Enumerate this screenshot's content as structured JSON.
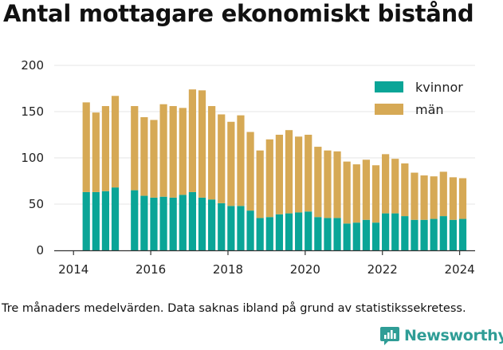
{
  "title": "Antal mottagare ekonomiskt bistånd",
  "caption": "Tre månaders medelvärden. Data saknas ibland på grund av statistikssekretess.",
  "brand": {
    "name": "Newsworthy",
    "icon": "newsworthy-logo-icon",
    "color": "#2f9d96"
  },
  "colors": {
    "kvinnor": "#0aa597",
    "man": "#d6a955",
    "axis": "#333333",
    "grid": "#e6e6e6"
  },
  "chart_data": {
    "type": "bar",
    "stacked": true,
    "title": "Antal mottagare ekonomiskt bistånd",
    "xlabel": "",
    "ylabel": "",
    "ylim": [
      0,
      200
    ],
    "yticks": [
      0,
      50,
      100,
      150,
      200
    ],
    "xlim": [
      2013.5,
      2024.4
    ],
    "xticks": [
      2014,
      2016,
      2018,
      2020,
      2022,
      2024
    ],
    "xtick_labels": [
      "2014",
      "2016",
      "2018",
      "2020",
      "2022",
      "2024"
    ],
    "grid": "horizontal",
    "legend": "top-right",
    "x": [
      2014.33,
      2014.58,
      2014.83,
      2015.08,
      2015.58,
      2015.83,
      2016.08,
      2016.33,
      2016.58,
      2016.83,
      2017.08,
      2017.33,
      2017.58,
      2017.83,
      2018.08,
      2018.33,
      2018.58,
      2018.83,
      2019.08,
      2019.33,
      2019.58,
      2019.83,
      2020.08,
      2020.33,
      2020.58,
      2020.83,
      2021.08,
      2021.33,
      2021.58,
      2021.83,
      2022.08,
      2022.33,
      2022.58,
      2022.83,
      2023.08,
      2023.33,
      2023.58,
      2023.83,
      2024.08
    ],
    "series": [
      {
        "name": "kvinnor",
        "color": "#0aa597",
        "values": [
          63,
          63,
          64,
          68,
          65,
          59,
          57,
          58,
          57,
          60,
          63,
          57,
          55,
          51,
          48,
          48,
          43,
          35,
          36,
          39,
          40,
          41,
          42,
          36,
          35,
          35,
          29,
          30,
          33,
          30,
          40,
          40,
          37,
          33,
          33,
          34,
          37,
          33,
          34
        ]
      },
      {
        "name": "män",
        "color": "#d6a955",
        "values": [
          97,
          86,
          92,
          99,
          91,
          85,
          84,
          100,
          99,
          94,
          111,
          116,
          101,
          96,
          91,
          98,
          85,
          73,
          84,
          86,
          90,
          82,
          83,
          76,
          73,
          72,
          67,
          63,
          65,
          62,
          64,
          59,
          57,
          51,
          48,
          46,
          48,
          46,
          44
        ]
      }
    ]
  }
}
